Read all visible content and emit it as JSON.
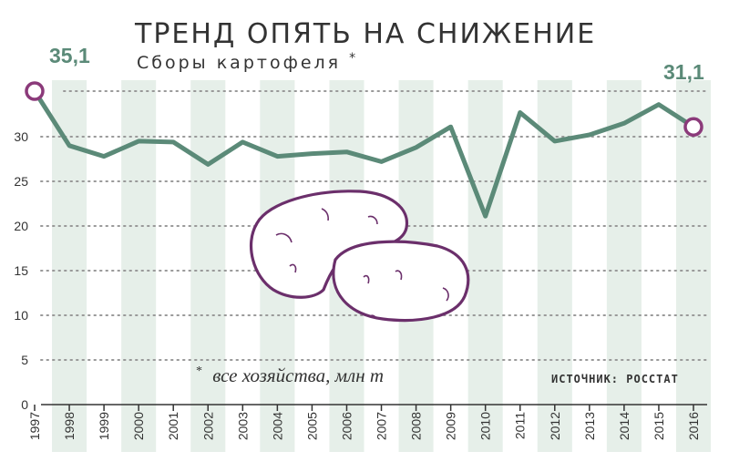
{
  "chart_data": {
    "type": "line",
    "title": "ТРЕНД ОПЯТЬ НА СНИЖЕНИЕ",
    "subtitle": "Сборы картофеля",
    "subtitle_mark": "*",
    "categories": [
      "1997",
      "1998",
      "1999",
      "2000",
      "2001",
      "2002",
      "2003",
      "2004",
      "2005",
      "2006",
      "2007",
      "2008",
      "2009",
      "2010",
      "2011",
      "2012",
      "2013",
      "2014",
      "2015",
      "2016"
    ],
    "series": [
      {
        "values": [
          35.1,
          29.0,
          27.8,
          29.5,
          29.4,
          26.9,
          29.4,
          27.8,
          28.1,
          28.3,
          27.2,
          28.8,
          31.1,
          21.1,
          32.7,
          29.5,
          30.2,
          31.5,
          33.6,
          31.1
        ]
      }
    ],
    "yticks": [
      0,
      5,
      10,
      15,
      20,
      25,
      30
    ],
    "ylim": [
      0,
      36
    ],
    "grid": true,
    "end_labels": {
      "first": "35,1",
      "last": "31,1"
    },
    "footnote_mark": "*",
    "footnote": "все хозяйства, млн т",
    "source": "ИСТОЧНИК: РОССТАТ",
    "colors": {
      "line": "#5b8a78",
      "marker_edge": "#8b3a7a",
      "stripe": "#e6efe9",
      "grid_dots": "#999999",
      "potato_outline": "#6b2f6b"
    }
  }
}
